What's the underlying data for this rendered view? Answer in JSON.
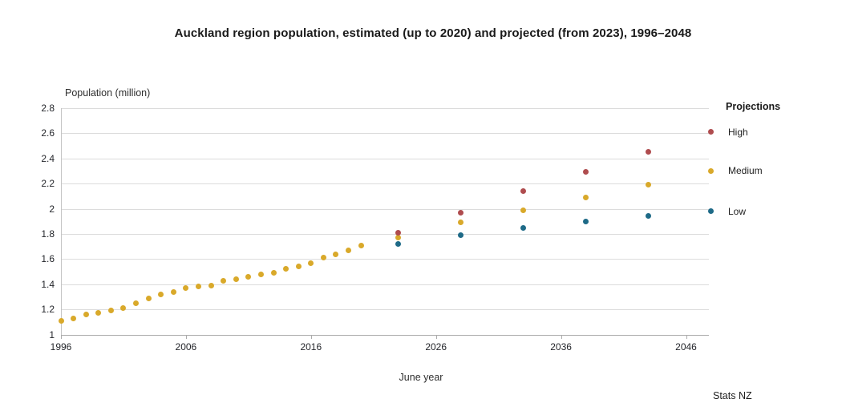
{
  "source_label": "Stats NZ",
  "chart_data": {
    "type": "scatter",
    "title": "Auckland region population, estimated (up to 2020) and projected (from 2023), 1996–2048",
    "ylabel": "Population (million)",
    "xlabel": "June year",
    "legend_title": "Projections",
    "legend_position": "right",
    "grid": "horizontal",
    "xlim": [
      1996,
      2048.5
    ],
    "ylim": [
      1.0,
      2.8
    ],
    "x_ticks": [
      1996,
      2006,
      2016,
      2026,
      2036,
      2046
    ],
    "y_ticks": [
      1,
      1.2,
      1.4,
      1.6,
      1.8,
      2,
      2.2,
      2.4,
      2.6,
      2.8
    ],
    "y_tick_labels": [
      "1",
      "1.2",
      "1.4",
      "1.6",
      "1.8",
      "2",
      "2.2",
      "2.4",
      "2.6",
      "2.8"
    ],
    "series": [
      {
        "name": "Estimated",
        "in_legend": false,
        "color": "#d9a92a",
        "x": [
          1996,
          1997,
          1998,
          1999,
          2000,
          2001,
          2002,
          2003,
          2004,
          2005,
          2006,
          2007,
          2008,
          2009,
          2010,
          2011,
          2012,
          2013,
          2014,
          2015,
          2016,
          2017,
          2018,
          2019,
          2020
        ],
        "y": [
          1.11,
          1.13,
          1.16,
          1.17,
          1.19,
          1.21,
          1.25,
          1.29,
          1.32,
          1.34,
          1.37,
          1.38,
          1.39,
          1.43,
          1.44,
          1.46,
          1.48,
          1.49,
          1.52,
          1.54,
          1.57,
          1.61,
          1.64,
          1.67,
          1.71
        ]
      },
      {
        "name": "Low",
        "in_legend": true,
        "color": "#1e6a87",
        "x": [
          2023,
          2028,
          2033,
          2038,
          2043,
          2048
        ],
        "y": [
          1.72,
          1.79,
          1.85,
          1.9,
          1.94,
          1.98
        ]
      },
      {
        "name": "Medium",
        "in_legend": true,
        "color": "#d9a92a",
        "x": [
          2023,
          2028,
          2033,
          2038,
          2043,
          2048
        ],
        "y": [
          1.77,
          1.89,
          1.99,
          2.09,
          2.19,
          2.3
        ]
      },
      {
        "name": "High",
        "in_legend": true,
        "color": "#af4c4e",
        "x": [
          2023,
          2028,
          2033,
          2038,
          2043,
          2048
        ],
        "y": [
          1.81,
          1.97,
          2.14,
          2.29,
          2.45,
          2.61
        ]
      }
    ]
  }
}
